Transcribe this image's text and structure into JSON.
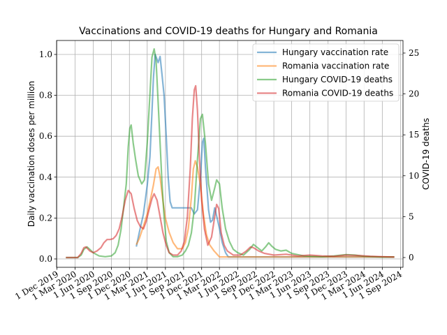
{
  "chart_data": {
    "type": "line",
    "title": "Vaccinations and COVID-19 deaths for Hungary and Romania",
    "ylabel": "Daily vaccination doses per million",
    "y2label": "COVID-19 deaths",
    "xlabel": "",
    "x_ticks": [
      "1 Dec 2019",
      "1 Mar 2020",
      "1 Jun 2020",
      "1 Sep 2020",
      "1 Dec 2020",
      "1 Mar 2021",
      "1 Jun 2021",
      "1 Sep 2021",
      "1 Dec 2021",
      "1 Mar 2022",
      "1 Jun 2022",
      "1 Sep 2022",
      "1 Dec 2022",
      "1 Mar 2023",
      "1 Jun 2023",
      "1 Sep 2023",
      "1 Dec 2023",
      "1 Mar 2024",
      "1 Jun 2024",
      "1 Sep 2024"
    ],
    "xlim": [
      "2019-12-01",
      "2024-09-01"
    ],
    "ylim": [
      0,
      1.0
    ],
    "y_ticks": [
      "0.0",
      "0.2",
      "0.4",
      "0.6",
      "0.8",
      "1.0"
    ],
    "y2lim": [
      0,
      25
    ],
    "y2_ticks": [
      "0",
      "5",
      "10",
      "15",
      "20",
      "25"
    ],
    "grid": true,
    "legend_position": "top-right",
    "series": [
      {
        "name": "Hungary vaccination rate",
        "axis": "left",
        "color": "#1f77b4",
        "points": [
          [
            "2021-01-05",
            0.06
          ],
          [
            "2021-01-20",
            0.13
          ],
          [
            "2021-02-10",
            0.22
          ],
          [
            "2021-03-01",
            0.36
          ],
          [
            "2021-03-15",
            0.5
          ],
          [
            "2021-03-25",
            0.72
          ],
          [
            "2021-04-01",
            0.88
          ],
          [
            "2021-04-10",
            1.0
          ],
          [
            "2021-04-18",
            0.98
          ],
          [
            "2021-04-25",
            0.96
          ],
          [
            "2021-05-05",
            0.99
          ],
          [
            "2021-05-15",
            0.9
          ],
          [
            "2021-05-25",
            0.8
          ],
          [
            "2021-06-05",
            0.6
          ],
          [
            "2021-06-15",
            0.4
          ],
          [
            "2021-06-25",
            0.28
          ],
          [
            "2021-07-05",
            0.25
          ],
          [
            "2021-10-10",
            0.25
          ],
          [
            "2021-10-25",
            0.22
          ],
          [
            "2021-11-10",
            0.24
          ],
          [
            "2021-11-25",
            0.4
          ],
          [
            "2021-12-05",
            0.57
          ],
          [
            "2021-12-12",
            0.59
          ],
          [
            "2021-12-20",
            0.45
          ],
          [
            "2022-01-05",
            0.24
          ],
          [
            "2022-01-15",
            0.18
          ],
          [
            "2022-01-25",
            0.19
          ],
          [
            "2022-02-05",
            0.25
          ],
          [
            "2022-02-15",
            0.21
          ],
          [
            "2022-03-01",
            0.15
          ],
          [
            "2022-03-15",
            0.08
          ],
          [
            "2022-04-01",
            0.03
          ],
          [
            "2022-04-15",
            0.01
          ],
          [
            "2024-08-01",
            0.01
          ]
        ]
      },
      {
        "name": "Romania vaccination rate",
        "axis": "left",
        "color": "#ff7f0e",
        "points": [
          [
            "2021-01-05",
            0.07
          ],
          [
            "2021-01-20",
            0.1
          ],
          [
            "2021-02-10",
            0.16
          ],
          [
            "2021-03-01",
            0.22
          ],
          [
            "2021-03-15",
            0.28
          ],
          [
            "2021-04-01",
            0.36
          ],
          [
            "2021-04-15",
            0.44
          ],
          [
            "2021-04-25",
            0.45
          ],
          [
            "2021-05-05",
            0.4
          ],
          [
            "2021-05-20",
            0.28
          ],
          [
            "2021-06-01",
            0.2
          ],
          [
            "2021-06-20",
            0.13
          ],
          [
            "2021-07-10",
            0.08
          ],
          [
            "2021-08-01",
            0.05
          ],
          [
            "2021-08-25",
            0.05
          ],
          [
            "2021-09-10",
            0.08
          ],
          [
            "2021-09-25",
            0.15
          ],
          [
            "2021-10-10",
            0.3
          ],
          [
            "2021-10-20",
            0.44
          ],
          [
            "2021-10-30",
            0.48
          ],
          [
            "2021-11-10",
            0.45
          ],
          [
            "2021-11-25",
            0.36
          ],
          [
            "2021-12-10",
            0.22
          ],
          [
            "2021-12-25",
            0.12
          ],
          [
            "2022-01-10",
            0.07
          ],
          [
            "2022-02-01",
            0.04
          ],
          [
            "2022-03-01",
            0.01
          ],
          [
            "2024-08-01",
            0.01
          ]
        ]
      },
      {
        "name": "Hungary COVID-19 deaths",
        "axis": "right",
        "color": "#2ca02c",
        "points": [
          [
            "2020-01-15",
            0.0
          ],
          [
            "2020-03-15",
            0.0
          ],
          [
            "2020-04-01",
            0.3
          ],
          [
            "2020-04-15",
            1.0
          ],
          [
            "2020-05-01",
            1.3
          ],
          [
            "2020-05-15",
            1.0
          ],
          [
            "2020-06-01",
            0.6
          ],
          [
            "2020-06-15",
            0.4
          ],
          [
            "2020-07-01",
            0.2
          ],
          [
            "2020-08-01",
            0.1
          ],
          [
            "2020-09-01",
            0.2
          ],
          [
            "2020-09-20",
            0.6
          ],
          [
            "2020-10-05",
            1.5
          ],
          [
            "2020-10-20",
            3.5
          ],
          [
            "2020-11-01",
            6.0
          ],
          [
            "2020-11-15",
            9.0
          ],
          [
            "2020-11-25",
            13.5
          ],
          [
            "2020-12-03",
            15.8
          ],
          [
            "2020-12-10",
            16.2
          ],
          [
            "2020-12-20",
            14.0
          ],
          [
            "2021-01-01",
            12.0
          ],
          [
            "2021-01-15",
            10.0
          ],
          [
            "2021-02-01",
            9.0
          ],
          [
            "2021-02-15",
            9.5
          ],
          [
            "2021-03-01",
            14.0
          ],
          [
            "2021-03-15",
            20.0
          ],
          [
            "2021-03-25",
            24.5
          ],
          [
            "2021-04-05",
            25.5
          ],
          [
            "2021-04-15",
            24.0
          ],
          [
            "2021-04-25",
            19.0
          ],
          [
            "2021-05-05",
            14.0
          ],
          [
            "2021-05-15",
            9.0
          ],
          [
            "2021-05-25",
            5.0
          ],
          [
            "2021-06-05",
            2.0
          ],
          [
            "2021-06-20",
            0.6
          ],
          [
            "2021-07-10",
            0.1
          ],
          [
            "2021-08-01",
            0.1
          ],
          [
            "2021-08-25",
            0.3
          ],
          [
            "2021-09-10",
            0.8
          ],
          [
            "2021-09-25",
            1.5
          ],
          [
            "2021-10-10",
            3.0
          ],
          [
            "2021-10-25",
            6.0
          ],
          [
            "2021-11-10",
            12.0
          ],
          [
            "2021-11-25",
            17.0
          ],
          [
            "2021-12-05",
            17.5
          ],
          [
            "2021-12-20",
            14.0
          ],
          [
            "2022-01-05",
            9.0
          ],
          [
            "2022-01-20",
            7.0
          ],
          [
            "2022-02-05",
            8.5
          ],
          [
            "2022-02-15",
            9.5
          ],
          [
            "2022-03-01",
            9.0
          ],
          [
            "2022-03-15",
            6.0
          ],
          [
            "2022-04-01",
            3.5
          ],
          [
            "2022-04-20",
            2.0
          ],
          [
            "2022-05-10",
            1.0
          ],
          [
            "2022-06-01",
            0.6
          ],
          [
            "2022-07-01",
            0.3
          ],
          [
            "2022-08-01",
            1.0
          ],
          [
            "2022-08-20",
            1.6
          ],
          [
            "2022-09-05",
            1.3
          ],
          [
            "2022-10-01",
            0.8
          ],
          [
            "2022-10-20",
            1.3
          ],
          [
            "2022-11-05",
            1.8
          ],
          [
            "2022-11-20",
            1.4
          ],
          [
            "2022-12-10",
            1.0
          ],
          [
            "2023-01-05",
            0.8
          ],
          [
            "2023-02-01",
            0.9
          ],
          [
            "2023-03-01",
            0.5
          ],
          [
            "2023-05-01",
            0.2
          ],
          [
            "2023-08-01",
            0.1
          ],
          [
            "2023-10-01",
            0.2
          ],
          [
            "2023-12-01",
            0.35
          ],
          [
            "2024-01-15",
            0.3
          ],
          [
            "2024-03-01",
            0.15
          ],
          [
            "2024-06-01",
            0.05
          ],
          [
            "2024-08-01",
            0.05
          ]
        ]
      },
      {
        "name": "Romania COVID-19 deaths",
        "axis": "right",
        "color": "#d62728",
        "points": [
          [
            "2020-01-15",
            0.0
          ],
          [
            "2020-03-15",
            0.0
          ],
          [
            "2020-04-01",
            0.5
          ],
          [
            "2020-04-15",
            1.2
          ],
          [
            "2020-04-25",
            1.3
          ],
          [
            "2020-05-15",
            0.8
          ],
          [
            "2020-06-01",
            0.6
          ],
          [
            "2020-06-20",
            0.8
          ],
          [
            "2020-07-10",
            1.2
          ],
          [
            "2020-07-25",
            1.8
          ],
          [
            "2020-08-10",
            2.2
          ],
          [
            "2020-08-25",
            2.2
          ],
          [
            "2020-09-10",
            2.3
          ],
          [
            "2020-09-25",
            2.7
          ],
          [
            "2020-10-10",
            3.5
          ],
          [
            "2020-10-25",
            5.0
          ],
          [
            "2020-11-10",
            7.0
          ],
          [
            "2020-11-25",
            8.2
          ],
          [
            "2020-12-10",
            7.8
          ],
          [
            "2020-12-25",
            6.0
          ],
          [
            "2021-01-10",
            4.5
          ],
          [
            "2021-01-25",
            3.8
          ],
          [
            "2021-02-10",
            3.5
          ],
          [
            "2021-02-25",
            4.5
          ],
          [
            "2021-03-10",
            5.8
          ],
          [
            "2021-03-25",
            7.2
          ],
          [
            "2021-04-05",
            7.8
          ],
          [
            "2021-04-20",
            7.0
          ],
          [
            "2021-05-05",
            5.0
          ],
          [
            "2021-05-20",
            3.0
          ],
          [
            "2021-06-05",
            1.5
          ],
          [
            "2021-06-20",
            0.6
          ],
          [
            "2021-07-10",
            0.3
          ],
          [
            "2021-08-01",
            0.3
          ],
          [
            "2021-08-20",
            0.8
          ],
          [
            "2021-09-05",
            2.0
          ],
          [
            "2021-09-20",
            5.0
          ],
          [
            "2021-10-05",
            11.0
          ],
          [
            "2021-10-15",
            17.0
          ],
          [
            "2021-10-25",
            20.5
          ],
          [
            "2021-11-01",
            21.0
          ],
          [
            "2021-11-10",
            18.0
          ],
          [
            "2021-11-20",
            12.0
          ],
          [
            "2021-12-01",
            7.0
          ],
          [
            "2021-12-15",
            3.5
          ],
          [
            "2022-01-01",
            1.5
          ],
          [
            "2022-01-20",
            2.5
          ],
          [
            "2022-02-05",
            5.0
          ],
          [
            "2022-02-15",
            6.5
          ],
          [
            "2022-02-25",
            6.0
          ],
          [
            "2022-03-10",
            3.0
          ],
          [
            "2022-03-25",
            1.5
          ],
          [
            "2022-04-10",
            0.8
          ],
          [
            "2022-05-10",
            0.3
          ],
          [
            "2022-06-15",
            0.3
          ],
          [
            "2022-07-15",
            0.8
          ],
          [
            "2022-08-05",
            1.3
          ],
          [
            "2022-08-20",
            1.2
          ],
          [
            "2022-09-15",
            0.8
          ],
          [
            "2022-10-15",
            0.5
          ],
          [
            "2022-12-01",
            0.3
          ],
          [
            "2023-02-01",
            0.4
          ],
          [
            "2023-04-01",
            0.2
          ],
          [
            "2023-06-01",
            0.3
          ],
          [
            "2023-08-01",
            0.2
          ],
          [
            "2023-10-01",
            0.15
          ],
          [
            "2023-12-01",
            0.3
          ],
          [
            "2024-02-01",
            0.25
          ],
          [
            "2024-04-01",
            0.15
          ],
          [
            "2024-06-01",
            0.1
          ],
          [
            "2024-08-01",
            0.05
          ]
        ]
      }
    ]
  }
}
